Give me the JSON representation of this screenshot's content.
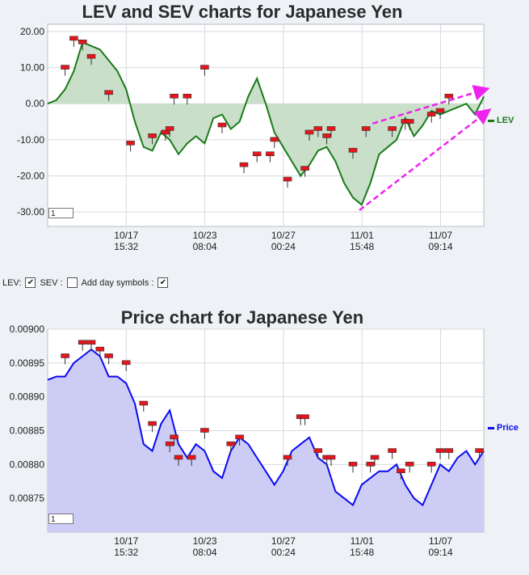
{
  "lev_chart": {
    "title": "LEV and SEV charts for Japanese Yen",
    "legend": "LEV",
    "zoom_value": "1",
    "colors": {
      "line": "#1a7a1a",
      "fill": "#c9dfc9",
      "marker": "#e8141b",
      "arrow": "#ee22ee"
    }
  },
  "controls": {
    "lev_label": "LEV:",
    "sev_label": "SEV :",
    "day_symbols_label": "Add day symbols :",
    "lev_checked": "✔",
    "sev_checked": "",
    "day_symbols_checked": "✔"
  },
  "price_chart": {
    "title": "Price chart for Japanese Yen",
    "legend": "Price",
    "zoom_value": "1",
    "colors": {
      "line": "#0a0af0",
      "fill": "#ccccf5",
      "marker": "#e8141b"
    }
  },
  "chart_data": [
    {
      "type": "area",
      "title": "LEV and SEV charts for Japanese Yen",
      "ylim": [
        -34,
        22
      ],
      "y_ticks": [
        "20.00",
        "10.00",
        "0.00",
        "-10.00",
        "-20.00",
        "-30.00"
      ],
      "x_ticks": [
        [
          "10/17",
          "15:32"
        ],
        [
          "10/23",
          "08:04"
        ],
        [
          "10/27",
          "00:24"
        ],
        [
          "11/01",
          "15:48"
        ],
        [
          "11/07",
          "09:14"
        ]
      ],
      "xlim": [
        0,
        100
      ],
      "grid": true,
      "legend_position": "right",
      "series": [
        {
          "name": "LEV",
          "x": [
            0,
            2,
            4,
            6,
            8,
            10,
            12,
            14,
            16,
            18,
            20,
            22,
            24,
            26,
            28,
            30,
            32,
            34,
            36,
            38,
            40,
            42,
            44,
            46,
            48,
            50,
            52,
            54,
            56,
            58,
            60,
            62,
            64,
            66,
            68,
            70,
            72,
            74,
            76,
            78,
            80,
            82,
            84,
            86,
            88,
            90,
            92,
            94,
            96,
            98,
            100
          ],
          "values": [
            0,
            1,
            4,
            9,
            17,
            16,
            15,
            12,
            9,
            4,
            -5,
            -12,
            -13,
            -8,
            -10,
            -14,
            -11,
            -9,
            -11,
            -4,
            -3,
            -7,
            -5,
            2,
            7,
            0,
            -8,
            -12,
            -16,
            -20,
            -17,
            -13,
            -12,
            -16,
            -22,
            -26,
            -28,
            -22,
            -14,
            -12,
            -10,
            -4,
            -9,
            -6,
            -2,
            -3,
            -2,
            -1,
            0,
            -3,
            2
          ]
        }
      ],
      "markers": {
        "x": [
          4,
          6,
          8,
          10,
          14,
          19,
          24,
          27,
          28,
          29,
          32,
          36,
          40,
          45,
          48,
          51,
          52,
          55,
          59,
          60,
          62,
          64,
          65,
          70,
          73,
          79,
          82,
          83,
          88,
          90,
          92
        ],
        "values": [
          10,
          18,
          17,
          13,
          3,
          -11,
          -9,
          -8,
          -7,
          2,
          2,
          10,
          -6,
          -17,
          -14,
          -14,
          -10,
          -21,
          -18,
          -8,
          -7,
          -9,
          -7,
          -13,
          -7,
          -7,
          -5,
          -5,
          -3,
          -2,
          2
        ]
      },
      "trend_arrows": true
    },
    {
      "type": "area",
      "title": "Price chart for Japanese Yen",
      "ylim": [
        0.0087,
        0.009
      ],
      "y_ticks": [
        "0.00900",
        "0.00895",
        "0.00890",
        "0.00885",
        "0.00880",
        "0.00875"
      ],
      "x_ticks": [
        [
          "10/17",
          "15:32"
        ],
        [
          "10/23",
          "08:04"
        ],
        [
          "10/27",
          "00:24"
        ],
        [
          "11/01",
          "15:48"
        ],
        [
          "11/07",
          "09:14"
        ]
      ],
      "xlim": [
        0,
        100
      ],
      "grid": true,
      "legend_position": "right",
      "series": [
        {
          "name": "Price",
          "x": [
            0,
            2,
            4,
            6,
            8,
            10,
            12,
            14,
            16,
            18,
            20,
            22,
            24,
            26,
            28,
            30,
            32,
            34,
            36,
            38,
            40,
            42,
            44,
            46,
            48,
            50,
            52,
            54,
            56,
            58,
            60,
            62,
            64,
            66,
            68,
            70,
            72,
            74,
            76,
            78,
            80,
            82,
            84,
            86,
            88,
            90,
            92,
            94,
            96,
            98,
            100
          ],
          "values": [
            0.008925,
            0.00893,
            0.00893,
            0.00895,
            0.00896,
            0.00897,
            0.00896,
            0.00893,
            0.00893,
            0.00892,
            0.00889,
            0.00883,
            0.00882,
            0.00886,
            0.00888,
            0.00883,
            0.00881,
            0.00883,
            0.00882,
            0.00879,
            0.00878,
            0.00882,
            0.00884,
            0.00883,
            0.00881,
            0.00879,
            0.00877,
            0.00879,
            0.00882,
            0.00883,
            0.00884,
            0.00881,
            0.0088,
            0.00876,
            0.00875,
            0.00874,
            0.00877,
            0.00878,
            0.00879,
            0.00879,
            0.0088,
            0.00877,
            0.00875,
            0.00874,
            0.00877,
            0.0088,
            0.00879,
            0.00881,
            0.00882,
            0.0088,
            0.00882
          ]
        }
      ],
      "markers": {
        "x": [
          4,
          8,
          10,
          12,
          14,
          18,
          22,
          24,
          28,
          29,
          30,
          33,
          36,
          42,
          44,
          55,
          58,
          59,
          62,
          64,
          65,
          70,
          74,
          75,
          79,
          81,
          83,
          88,
          90,
          92,
          99
        ],
        "values": [
          0.00896,
          0.00898,
          0.00898,
          0.00897,
          0.00896,
          0.00895,
          0.00889,
          0.00886,
          0.00883,
          0.00884,
          0.00881,
          0.00881,
          0.00885,
          0.00883,
          0.00884,
          0.00881,
          0.00887,
          0.00887,
          0.00882,
          0.00881,
          0.00881,
          0.0088,
          0.0088,
          0.00881,
          0.00882,
          0.00879,
          0.0088,
          0.0088,
          0.00882,
          0.00882,
          0.00882
        ]
      }
    }
  ]
}
